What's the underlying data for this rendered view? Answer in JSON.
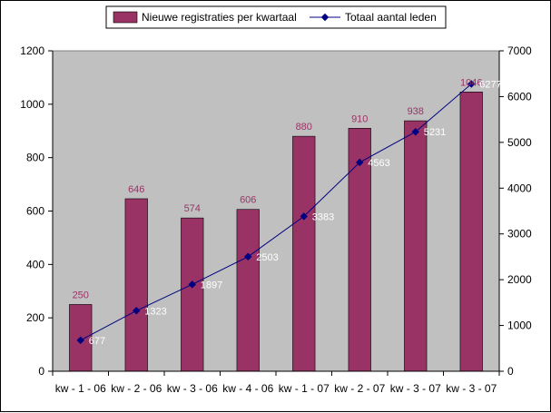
{
  "chart_data": {
    "type": "bar",
    "categories": [
      "kw - 1 - 06",
      "kw - 2 - 06",
      "kw - 3 - 06",
      "kw - 4 - 06",
      "kw - 1 - 07",
      "kw - 2 - 07",
      "kw - 3 - 07",
      "kw - 3 - 07"
    ],
    "series": [
      {
        "name": "Nieuwe registraties per kwartaal",
        "type": "bar",
        "axis": "left",
        "color": "#993366",
        "values": [
          250,
          646,
          574,
          606,
          880,
          910,
          938,
          1046
        ]
      },
      {
        "name": "Totaal aantal leden",
        "type": "line",
        "axis": "right",
        "color": "#000080",
        "values": [
          677,
          1323,
          1897,
          2503,
          3383,
          4563,
          5231,
          6277
        ]
      }
    ],
    "y_left": {
      "lim": [
        0,
        1200
      ],
      "ticks": [
        0,
        200,
        400,
        600,
        800,
        1000,
        1200
      ]
    },
    "y_right": {
      "lim": [
        0,
        7000
      ],
      "ticks": [
        0,
        1000,
        2000,
        3000,
        4000,
        5000,
        6000,
        7000
      ]
    },
    "title": "",
    "xlabel": "",
    "ylabel": "",
    "grid": false,
    "legend": "top",
    "plot_background": "#c0c0c0"
  }
}
